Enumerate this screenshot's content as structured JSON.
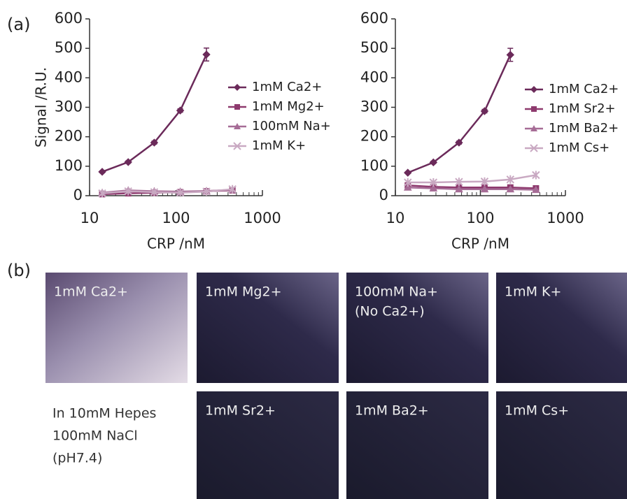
{
  "panel_labels": [
    "(a)",
    "(b)"
  ],
  "chart_data": [
    {
      "type": "line",
      "ylabel": "Signal /R.U.",
      "xlabel": "CRP /nM",
      "xscale": "log",
      "xlim": [
        10,
        1000
      ],
      "xticks": [
        10,
        100,
        1000
      ],
      "ylim": [
        0,
        600
      ],
      "yticks": [
        0,
        100,
        200,
        300,
        400,
        500,
        600
      ],
      "series": [
        {
          "name": "1mM Ca2+",
          "color": "#6b2a5a",
          "marker": "diamond",
          "x": [
            14,
            28,
            56,
            112,
            225
          ],
          "values": [
            81,
            114,
            180,
            289,
            479
          ],
          "errors": [
            3,
            4,
            5,
            6,
            22
          ]
        },
        {
          "name": "1mM Mg2+",
          "color": "#8e3a6e",
          "marker": "square",
          "x": [
            14,
            28,
            56,
            112,
            225,
            450
          ],
          "values": [
            5,
            8,
            10,
            12,
            15,
            18
          ]
        },
        {
          "name": "100mM Na+",
          "color": "#a66c96",
          "marker": "triangle",
          "x": [
            14,
            28,
            56,
            112,
            225,
            450
          ],
          "values": [
            10,
            18,
            15,
            14,
            16,
            20
          ]
        },
        {
          "name": "1mM K+",
          "color": "#c9a9c2",
          "marker": "star",
          "x": [
            14,
            28,
            56,
            112,
            225,
            450
          ],
          "values": [
            8,
            15,
            12,
            10,
            14,
            22
          ]
        }
      ]
    },
    {
      "type": "line",
      "xlabel": "CRP /nM",
      "xscale": "log",
      "xlim": [
        10,
        1000
      ],
      "xticks": [
        10,
        100,
        1000
      ],
      "ylim": [
        0,
        600
      ],
      "yticks": [
        0,
        100,
        200,
        300,
        400,
        500,
        600
      ],
      "series": [
        {
          "name": "1mM Ca2+",
          "color": "#6b2a5a",
          "marker": "diamond",
          "x": [
            14,
            28,
            56,
            112,
            225
          ],
          "values": [
            78,
            113,
            180,
            287,
            478
          ],
          "errors": [
            3,
            4,
            5,
            6,
            22
          ]
        },
        {
          "name": "1mM Sr2+",
          "color": "#8e3a6e",
          "marker": "square",
          "x": [
            14,
            28,
            56,
            112,
            225,
            450
          ],
          "values": [
            35,
            30,
            28,
            28,
            28,
            25
          ]
        },
        {
          "name": "1mM Ba2+",
          "color": "#a66c96",
          "marker": "triangle",
          "x": [
            14,
            28,
            56,
            112,
            225,
            450
          ],
          "values": [
            28,
            25,
            22,
            22,
            22,
            20
          ]
        },
        {
          "name": "1mM Cs+",
          "color": "#c9a9c2",
          "marker": "star",
          "x": [
            14,
            28,
            56,
            112,
            225,
            450
          ],
          "values": [
            45,
            45,
            47,
            48,
            55,
            70
          ]
        }
      ]
    }
  ],
  "images": [
    {
      "lines": [
        "1mM Ca2+"
      ]
    },
    {
      "lines": [
        "1mM Mg2+"
      ]
    },
    {
      "lines": [
        "100mM Na+",
        "(No Ca2+)"
      ]
    },
    {
      "lines": [
        "1mM K+"
      ]
    },
    {
      "lines": [
        "1mM Sr2+"
      ]
    },
    {
      "lines": [
        "1mM Ba2+"
      ]
    },
    {
      "lines": [
        "1mM Cs+"
      ]
    }
  ],
  "buffer_note": [
    "In 10mM Hepes",
    "100mM NaCl",
    "(pH7.4)"
  ]
}
